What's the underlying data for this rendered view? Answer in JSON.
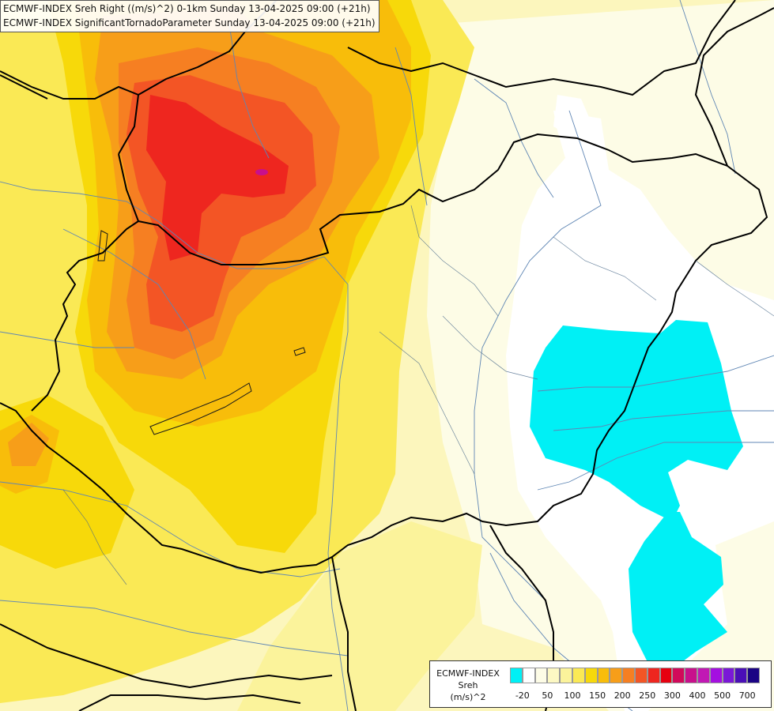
{
  "title": {
    "line1": "ECMWF-INDEX Sreh Right ((m/s)^2) 0-1km Sunday 13-04-2025 09:00 (+21h)",
    "line2": "ECMWF-INDEX SignificantTornadoParameter Sunday 13-04-2025 09:00 (+21h)"
  },
  "legend": {
    "line1": "ECMWF-INDEX",
    "line2": "Sreh",
    "line3": "(m/s)^2",
    "colors": [
      "#00f0f5",
      "#ffffff",
      "#fdfce6",
      "#fcf8c3",
      "#fbf39b",
      "#fae955",
      "#f7d90a",
      "#f8bd0a",
      "#f79e19",
      "#f67f22",
      "#f35525",
      "#ee261f",
      "#e60010",
      "#d10a5a",
      "#c8108c",
      "#c118b4",
      "#a40fe0",
      "#7a18d7",
      "#4a0fb7",
      "#1a0384"
    ],
    "labels": [
      "-20",
      "50",
      "100",
      "150",
      "200",
      "250",
      "300",
      "400",
      "500",
      "700"
    ]
  },
  "map": {
    "field_colors": {
      "cyan": "#00f0f5",
      "white": "#ffffff",
      "pale_cream": "#fdfce6",
      "cream": "#fcf6bd",
      "light_yellow": "#fbf39b",
      "yellow": "#fae955",
      "gold": "#f7d90a",
      "orange_light": "#f8bd0a",
      "orange": "#f79e19",
      "orange_dark": "#f67f22",
      "red_orange": "#f35525",
      "red": "#ee261f",
      "magenta": "#c8108c"
    },
    "border_color": "#000000",
    "river_color": "#5f86b4",
    "subregion_color": "#4a6a8a"
  }
}
